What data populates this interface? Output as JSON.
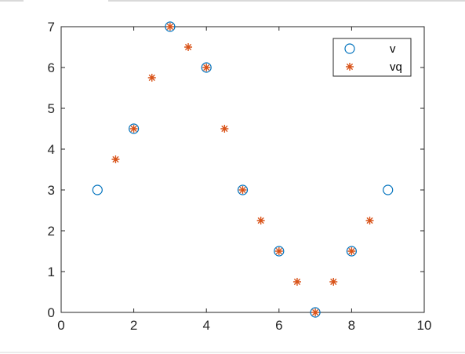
{
  "chart_data": {
    "type": "scatter",
    "xlim": [
      0,
      10
    ],
    "ylim": [
      0,
      7
    ],
    "xticks": [
      0,
      2,
      4,
      6,
      8,
      10
    ],
    "yticks": [
      0,
      1,
      2,
      3,
      4,
      5,
      6,
      7
    ],
    "x_tick_labels": [
      "0",
      "2",
      "4",
      "6",
      "8",
      "10"
    ],
    "y_tick_labels": [
      "0",
      "1",
      "2",
      "3",
      "4",
      "5",
      "6",
      "7"
    ],
    "grid": false,
    "legend_position": "top-right",
    "series": [
      {
        "name": "v",
        "marker": "circle",
        "color": "#0072BD",
        "x": [
          1,
          2,
          3,
          4,
          5,
          6,
          7,
          8,
          9
        ],
        "y": [
          3,
          4.5,
          7,
          6,
          3,
          1.5,
          0,
          1.5,
          3
        ]
      },
      {
        "name": "vq",
        "marker": "asterisk",
        "color": "#D95319",
        "x": [
          1.5,
          2,
          2.5,
          3,
          3.5,
          4,
          4.5,
          5,
          5.5,
          6,
          6.5,
          7,
          7.5,
          8,
          8.5
        ],
        "y": [
          3.75,
          4.5,
          5.75,
          7,
          6.5,
          6,
          4.5,
          3,
          2.25,
          1.5,
          0.75,
          0,
          0.75,
          1.5,
          2.25
        ]
      }
    ]
  }
}
